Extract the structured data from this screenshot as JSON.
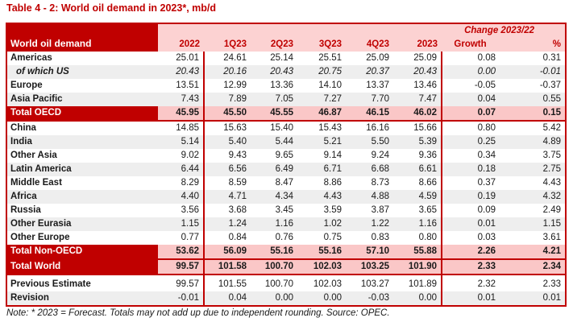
{
  "title": "Table 4 - 2: World oil demand in 2023*, mb/d",
  "table": {
    "corner_label": "World oil demand",
    "change_header": "Change 2023/22",
    "period_columns": [
      "2022",
      "1Q23",
      "2Q23",
      "3Q23",
      "4Q23",
      "2023"
    ],
    "change_columns": [
      "Growth",
      "%"
    ],
    "rows": [
      {
        "label": "Americas",
        "style": "normal",
        "values": [
          "25.01",
          "24.61",
          "25.14",
          "25.51",
          "25.09",
          "25.09",
          "0.08",
          "0.31"
        ]
      },
      {
        "label": "of which US",
        "style": "italic",
        "values": [
          "20.43",
          "20.16",
          "20.43",
          "20.75",
          "20.37",
          "20.43",
          "0.00",
          "-0.01"
        ]
      },
      {
        "label": "Europe",
        "style": "normal",
        "values": [
          "13.51",
          "12.99",
          "13.36",
          "14.10",
          "13.37",
          "13.46",
          "-0.05",
          "-0.37"
        ]
      },
      {
        "label": "Asia Pacific",
        "style": "normal",
        "values": [
          "7.43",
          "7.89",
          "7.05",
          "7.27",
          "7.70",
          "7.47",
          "0.04",
          "0.55"
        ]
      },
      {
        "label": "Total OECD",
        "style": "total",
        "values": [
          "45.95",
          "45.50",
          "45.55",
          "46.87",
          "46.15",
          "46.02",
          "0.07",
          "0.15"
        ]
      },
      {
        "label": "China",
        "style": "normal",
        "values": [
          "14.85",
          "15.63",
          "15.40",
          "15.43",
          "16.16",
          "15.66",
          "0.80",
          "5.42"
        ]
      },
      {
        "label": "India",
        "style": "normal",
        "values": [
          "5.14",
          "5.40",
          "5.44",
          "5.21",
          "5.50",
          "5.39",
          "0.25",
          "4.89"
        ]
      },
      {
        "label": "Other Asia",
        "style": "normal",
        "values": [
          "9.02",
          "9.43",
          "9.65",
          "9.14",
          "9.24",
          "9.36",
          "0.34",
          "3.75"
        ]
      },
      {
        "label": "Latin America",
        "style": "normal",
        "values": [
          "6.44",
          "6.56",
          "6.49",
          "6.71",
          "6.68",
          "6.61",
          "0.18",
          "2.75"
        ]
      },
      {
        "label": "Middle East",
        "style": "normal",
        "values": [
          "8.29",
          "8.59",
          "8.47",
          "8.86",
          "8.73",
          "8.66",
          "0.37",
          "4.43"
        ]
      },
      {
        "label": "Africa",
        "style": "normal",
        "values": [
          "4.40",
          "4.71",
          "4.34",
          "4.43",
          "4.88",
          "4.59",
          "0.19",
          "4.32"
        ]
      },
      {
        "label": "Russia",
        "style": "normal",
        "values": [
          "3.56",
          "3.68",
          "3.45",
          "3.59",
          "3.87",
          "3.65",
          "0.09",
          "2.49"
        ]
      },
      {
        "label": "Other Eurasia",
        "style": "normal",
        "values": [
          "1.15",
          "1.24",
          "1.16",
          "1.02",
          "1.22",
          "1.16",
          "0.01",
          "1.15"
        ]
      },
      {
        "label": "Other Europe",
        "style": "normal",
        "values": [
          "0.77",
          "0.84",
          "0.76",
          "0.75",
          "0.83",
          "0.80",
          "0.03",
          "3.61"
        ]
      },
      {
        "label": "Total Non-OECD",
        "style": "total",
        "values": [
          "53.62",
          "56.09",
          "55.16",
          "55.16",
          "57.10",
          "55.88",
          "2.26",
          "4.21"
        ]
      },
      {
        "label": "Total World",
        "style": "total",
        "values": [
          "99.57",
          "101.58",
          "100.70",
          "102.03",
          "103.25",
          "101.90",
          "2.33",
          "2.34"
        ]
      },
      {
        "label": "Previous Estimate",
        "style": "estimate",
        "values": [
          "99.57",
          "101.55",
          "100.70",
          "102.03",
          "103.27",
          "101.89",
          "2.32",
          "2.33"
        ]
      },
      {
        "label": "Revision",
        "style": "estimate",
        "values": [
          "-0.01",
          "0.04",
          "0.00",
          "0.00",
          "-0.03",
          "0.00",
          "0.01",
          "0.01"
        ]
      }
    ]
  },
  "note": "Note: * 2023 = Forecast. Totals may not add up due to independent rounding. Source: OPEC.",
  "colors": {
    "dark_red": "#C00000",
    "header_pink": "#FCD2D2",
    "total_pink": "#FAC7C7",
    "stripe_gray": "#EEEEEE",
    "text": "#1A1A1A"
  }
}
